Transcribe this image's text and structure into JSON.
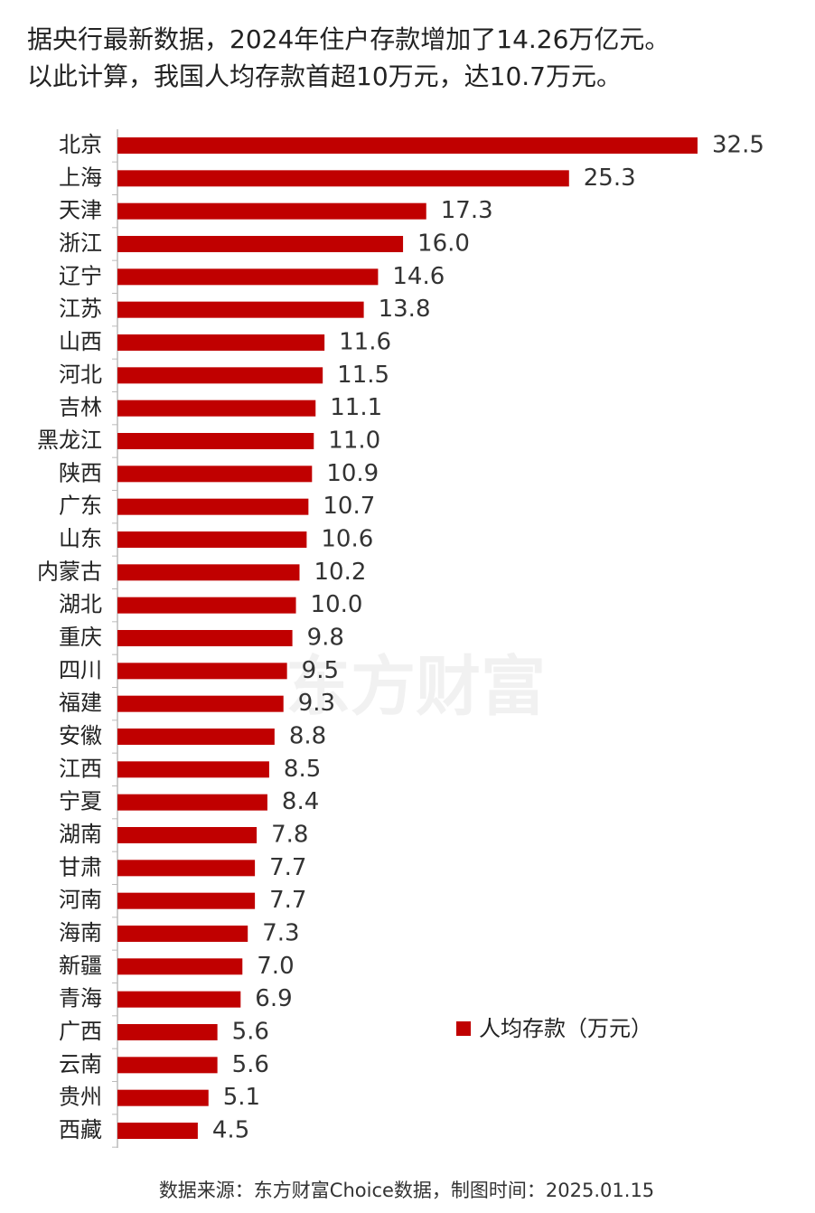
{
  "chart_data": {
    "type": "barh",
    "title": [
      "据央行最新数据，2024年住户存款增加了14.26万亿元。",
      "以此计算，我国人均存款首超10万元，达10.7万元。"
    ],
    "categories": [
      "北京",
      "上海",
      "天津",
      "浙江",
      "辽宁",
      "江苏",
      "山西",
      "河北",
      "吉林",
      "黑龙江",
      "陕西",
      "广东",
      "山东",
      "内蒙古",
      "湖北",
      "重庆",
      "四川",
      "福建",
      "安徽",
      "江西",
      "宁夏",
      "湖南",
      "甘肃",
      "河南",
      "海南",
      "新疆",
      "青海",
      "广西",
      "云南",
      "贵州",
      "西藏"
    ],
    "series": [
      {
        "name": "人均存款（万元）",
        "color": "#c00000",
        "values": [
          32.5,
          25.3,
          17.3,
          16,
          14.6,
          13.8,
          11.6,
          11.5,
          11.1,
          11,
          10.9,
          10.7,
          10.6,
          10.2,
          10,
          9.8,
          9.5,
          9.3,
          8.8,
          8.5,
          8.4,
          7.8,
          7.7,
          7.7,
          7.3,
          7,
          6.9,
          5.6,
          5.6,
          5.1,
          4.5
        ],
        "value_labels": [
          "32.5",
          "25.3",
          "17.3",
          "16.0",
          "14.6",
          "13.8",
          "11.6",
          "11.5",
          "11.1",
          "11.0",
          "10.9",
          "10.7",
          "10.6",
          "10.2",
          "10.0",
          "9.8",
          "9.5",
          "9.3",
          "8.8",
          "8.5",
          "8.4",
          "7.8",
          "7.7",
          "7.7",
          "7.3",
          "7.0",
          "6.9",
          "5.6",
          "5.6",
          "5.1",
          "4.5"
        ]
      }
    ],
    "watermark": "东方财富",
    "source": "数据来源：东方财富Choice数据，制图时间：2025.01.15"
  }
}
